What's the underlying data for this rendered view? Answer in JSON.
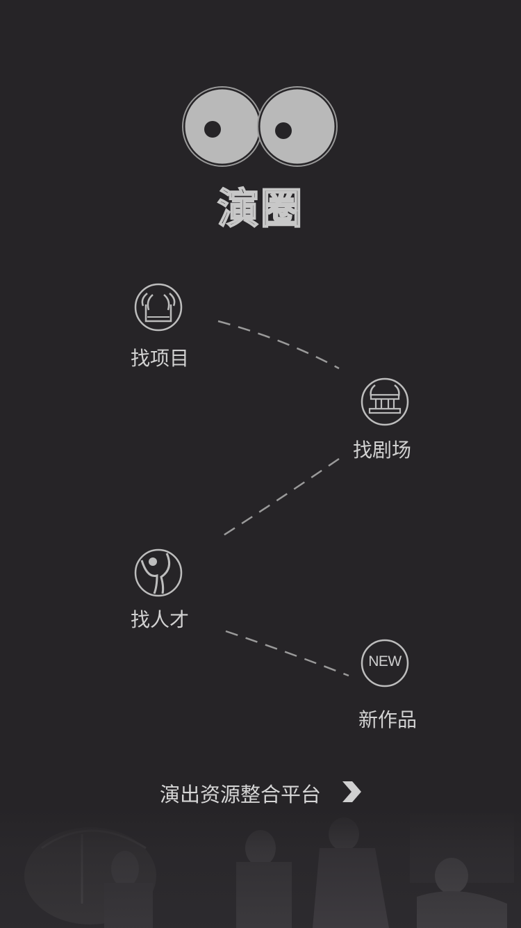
{
  "brand": {
    "name": "演圈",
    "logo_icon": "big-eyes-icon"
  },
  "nodes": [
    {
      "id": "project",
      "label": "找项目",
      "icon": "gate-project-icon"
    },
    {
      "id": "theater",
      "label": "找剧场",
      "icon": "theater-building-icon"
    },
    {
      "id": "talent",
      "label": "找人才",
      "icon": "talent-figure-icon"
    },
    {
      "id": "works",
      "label": "新作品",
      "icon": "new-badge-icon",
      "badge_text": "NEW"
    }
  ],
  "footer": {
    "slogan": "演出资源整合平台",
    "arrow_icon": "chevron-right-icon"
  },
  "colors": {
    "background": "#262427",
    "icon_stroke": "#bdbdbd",
    "eye_fill": "#b9b9b9"
  }
}
